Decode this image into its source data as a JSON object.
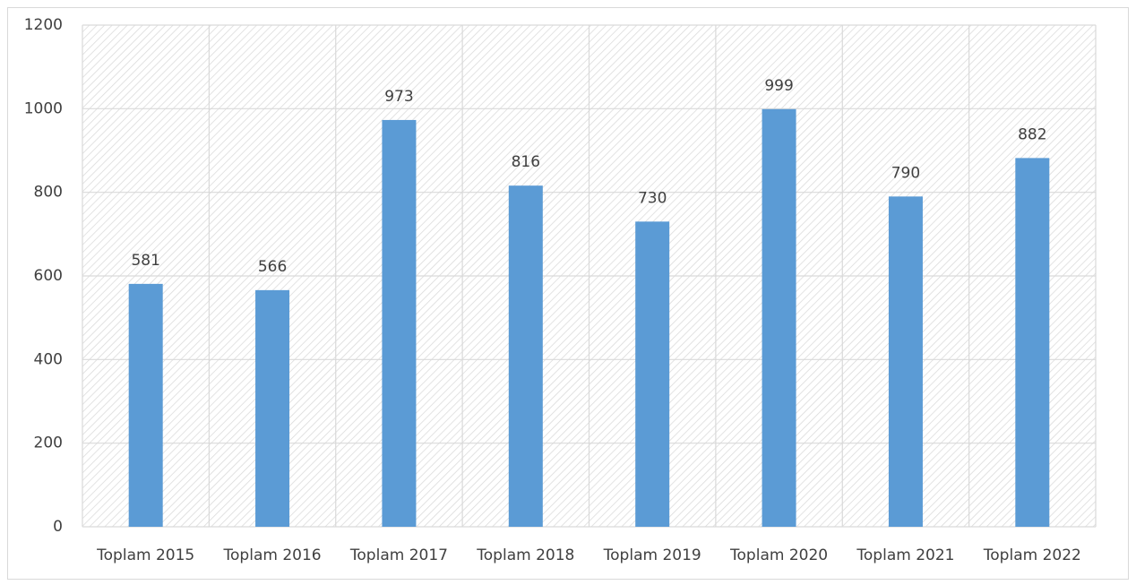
{
  "chart_data": {
    "type": "bar",
    "categories": [
      "Toplam 2015",
      "Toplam 2016",
      "Toplam 2017",
      "Toplam 2018",
      "Toplam 2019",
      "Toplam 2020",
      "Toplam 2021",
      "Toplam 2022"
    ],
    "values": [
      581,
      566,
      973,
      816,
      730,
      999,
      790,
      882
    ],
    "color": "#5b9bd5",
    "ylim": [
      0,
      1200
    ],
    "yticks": [
      0,
      200,
      400,
      600,
      800,
      1000,
      1200
    ],
    "grid": true
  }
}
